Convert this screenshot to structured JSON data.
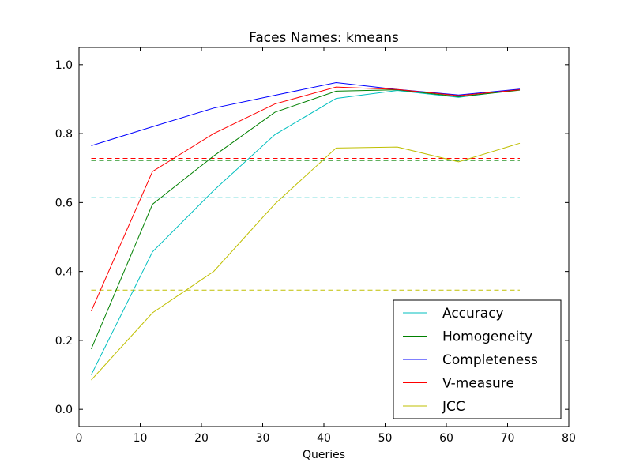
{
  "chart_data": {
    "type": "line",
    "title": "Faces Names: kmeans",
    "xlabel": "Queries",
    "ylabel": "",
    "xlim": [
      0,
      80
    ],
    "ylim": [
      -0.05,
      1.05
    ],
    "xticks": [
      "0",
      "10",
      "20",
      "30",
      "40",
      "50",
      "60",
      "70",
      "80"
    ],
    "yticks": [
      "0.0",
      "0.2",
      "0.4",
      "0.6",
      "0.8",
      "1.0"
    ],
    "grid": false,
    "legend_position": "lower-right",
    "x": [
      2,
      12,
      22,
      32,
      42,
      52,
      62,
      72
    ],
    "series": [
      {
        "name": "Accuracy",
        "color": "#00bfbf",
        "values": [
          0.1,
          0.457,
          0.635,
          0.797,
          0.902,
          0.925,
          0.905,
          0.928
        ],
        "baseline": 0.614
      },
      {
        "name": "Homogeneity",
        "color": "#008000",
        "values": [
          0.175,
          0.595,
          0.735,
          0.862,
          0.923,
          0.927,
          0.907,
          0.926
        ],
        "baseline": 0.722
      },
      {
        "name": "Completeness",
        "color": "#0000ff",
        "values": [
          0.765,
          0.82,
          0.874,
          0.911,
          0.948,
          0.928,
          0.912,
          0.929
        ],
        "baseline": 0.735
      },
      {
        "name": "V-measure",
        "color": "#ff0000",
        "values": [
          0.285,
          0.69,
          0.8,
          0.886,
          0.935,
          0.928,
          0.91,
          0.927
        ],
        "baseline": 0.728
      },
      {
        "name": "JCC",
        "color": "#bfbf00",
        "values": [
          0.085,
          0.28,
          0.4,
          0.596,
          0.758,
          0.761,
          0.718,
          0.772
        ],
        "baseline": 0.346
      }
    ]
  }
}
